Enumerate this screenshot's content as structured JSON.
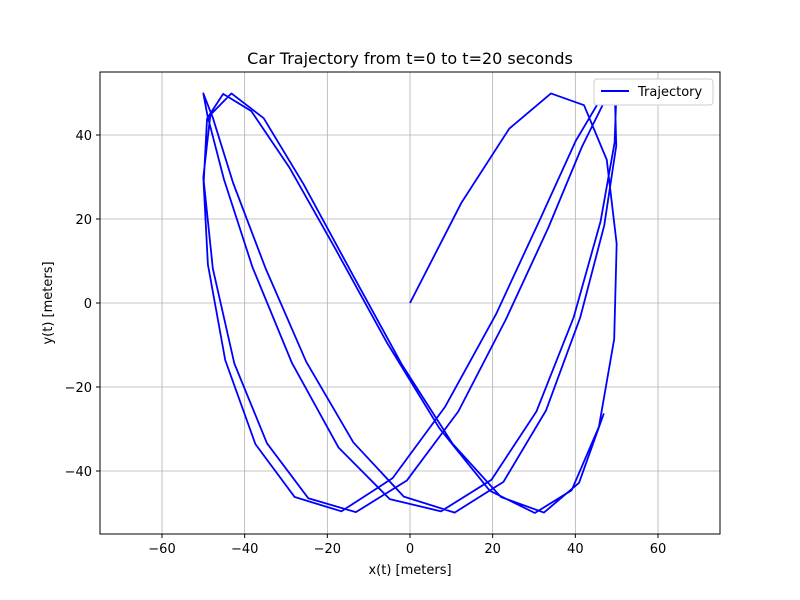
{
  "chart_data": {
    "type": "line",
    "title": "Car Trajectory from t=0 to t=20 seconds",
    "xlabel": "x(t) [meters]",
    "ylabel": "y(t) [meters]",
    "xlim": [
      -75,
      75
    ],
    "ylim": [
      -55,
      55
    ],
    "xticks": [
      -60,
      -40,
      -20,
      0,
      20,
      40,
      60
    ],
    "yticks": [
      -40,
      -20,
      0,
      20,
      40
    ],
    "xtick_labels": [
      "−60",
      "−40",
      "−20",
      "0",
      "20",
      "40",
      "60"
    ],
    "ytick_labels": [
      "−40",
      "−20",
      "0",
      "20",
      "40"
    ],
    "grid": true,
    "legend_position": "top-right",
    "series": [
      {
        "name": "Trajectory",
        "color": "#0000ff",
        "x": [
          0,
          12.4,
          24,
          34.1,
          42.1,
          47.6,
          50,
          49.4,
          45.7,
          39.1,
          30.2,
          19.3,
          7.1,
          -5.6,
          -18,
          -29.2,
          -38.4,
          -45.2,
          -49.1,
          -49.9,
          -47.7,
          -42.5,
          -34.6,
          -24.6,
          -13.1,
          -0.8,
          11.7,
          23.2,
          33.5,
          41.6,
          47.2,
          49.9,
          49.5,
          46.1,
          39.6,
          30.6,
          19.7,
          7.5,
          -4.9,
          -17.3,
          -28.6,
          -38.1,
          -45,
          -49,
          -50,
          -47.7,
          -42.8,
          -35,
          -25.1,
          -13.7,
          -1.5,
          10.8,
          22.6,
          32.9,
          41.2,
          47,
          49.9,
          49.6,
          46.3,
          40.1,
          31.4,
          20.8,
          8.5,
          -4.2,
          -16.6,
          -27.9,
          -37.4,
          -44.7,
          -48.9,
          -50,
          -48.3,
          -43.2,
          -35.4,
          -25.7,
          -14.4,
          -2,
          10.3,
          22,
          32.4,
          40.9,
          46.9
        ],
        "y": [
          0,
          23.8,
          41.5,
          49.9,
          47.1,
          34.1,
          14.1,
          -8.6,
          -29.5,
          -44.6,
          -50,
          -44.7,
          -29.8,
          -9.4,
          12.8,
          32.3,
          45.7,
          49.8,
          43.9,
          29,
          8.2,
          -14.4,
          -33.4,
          -46.5,
          -49.8,
          -42.3,
          -25.8,
          -3.9,
          18,
          37.2,
          48.3,
          48.9,
          38.2,
          19.4,
          -3.4,
          -25.8,
          -42.1,
          -49.6,
          -46.7,
          -34.4,
          -14.2,
          8.5,
          29.4,
          44.6,
          49.9,
          44.1,
          28.6,
          8.4,
          -14,
          -33.2,
          -46.1,
          -49.9,
          -42.6,
          -25.6,
          -3.4,
          18.5,
          37.4,
          48.3,
          48.9,
          38.6,
          19.8,
          -2.7,
          -24.7,
          -41.7,
          -49.6,
          -46.2,
          -33.6,
          -13.6,
          9.2,
          29.9,
          44.8,
          49.9,
          44,
          28.2,
          7.7,
          -14.6,
          -33.5,
          -46.2,
          -49.9,
          -42.8,
          -26.3
        ]
      }
    ]
  }
}
